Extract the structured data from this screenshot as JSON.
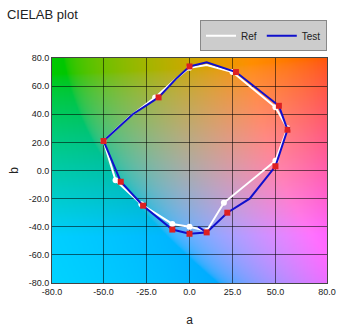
{
  "chart_data": {
    "type": "line",
    "title": "CIELAB plot",
    "xlabel": "a",
    "ylabel": "b",
    "xlim": [
      -80,
      80
    ],
    "ylim": [
      -80,
      80
    ],
    "xticks": [
      {
        "value": -80,
        "label": "-80.0"
      },
      {
        "value": -50,
        "label": "-50.0"
      },
      {
        "value": -25,
        "label": "-25.0"
      },
      {
        "value": 0,
        "label": "0.0"
      },
      {
        "value": 25,
        "label": "25.0"
      },
      {
        "value": 50,
        "label": "50.0"
      },
      {
        "value": 80,
        "label": "80.0"
      }
    ],
    "yticks": [
      {
        "value": -80,
        "label": "-80.0"
      },
      {
        "value": -60,
        "label": "-60.0"
      },
      {
        "value": -40,
        "label": "-40.0"
      },
      {
        "value": -20,
        "label": "-20.0"
      },
      {
        "value": 0,
        "label": "0.0"
      },
      {
        "value": 20,
        "label": "20.0"
      },
      {
        "value": 40,
        "label": "40.0"
      },
      {
        "value": 60,
        "label": "60.0"
      },
      {
        "value": 80,
        "label": "80.0"
      }
    ],
    "grid": true,
    "legend": "upper right",
    "series": [
      {
        "name": "Ref",
        "type": "line",
        "color": "#ffffff",
        "x": [
          -50,
          -43,
          -28,
          -10,
          0,
          10,
          20,
          50,
          57,
          50,
          25,
          10,
          0,
          -8,
          -20,
          -35,
          -50
        ],
        "values": [
          21,
          -7,
          -24,
          -38,
          -40,
          -43,
          -23,
          7,
          30,
          45,
          70,
          75,
          73,
          65,
          52,
          38,
          21
        ]
      },
      {
        "type": "scatter",
        "marker": "circle",
        "color": "#ffffff",
        "x": [
          -50,
          -43,
          -28,
          -10,
          0,
          10,
          20,
          50,
          57,
          50,
          25,
          0,
          -20
        ],
        "values": [
          21,
          -7,
          -24,
          -38,
          -40,
          -43,
          -23,
          7,
          30,
          45,
          70,
          73,
          52
        ]
      },
      {
        "name": "Test",
        "type": "line",
        "color": "#1010cc",
        "x": [
          -50,
          -40,
          -27,
          -10,
          0,
          10,
          5,
          10,
          22,
          35,
          50,
          57,
          52,
          27,
          10,
          3,
          0,
          -8,
          -18,
          -33,
          -50
        ],
        "values": [
          21,
          -8,
          -25,
          -42,
          -45,
          -44,
          -40,
          -44,
          -30,
          -20,
          3,
          29,
          46,
          70,
          77,
          75,
          74,
          65,
          52,
          40,
          21
        ]
      },
      {
        "type": "scatter",
        "marker": "square",
        "color": "#dd2020",
        "x": [
          -50,
          -40,
          -27,
          -10,
          0,
          10,
          22,
          50,
          57,
          52,
          27,
          0,
          -18
        ],
        "values": [
          21,
          -8,
          -25,
          -42,
          -45,
          -44,
          -30,
          3,
          29,
          46,
          70,
          74,
          52
        ]
      }
    ]
  }
}
